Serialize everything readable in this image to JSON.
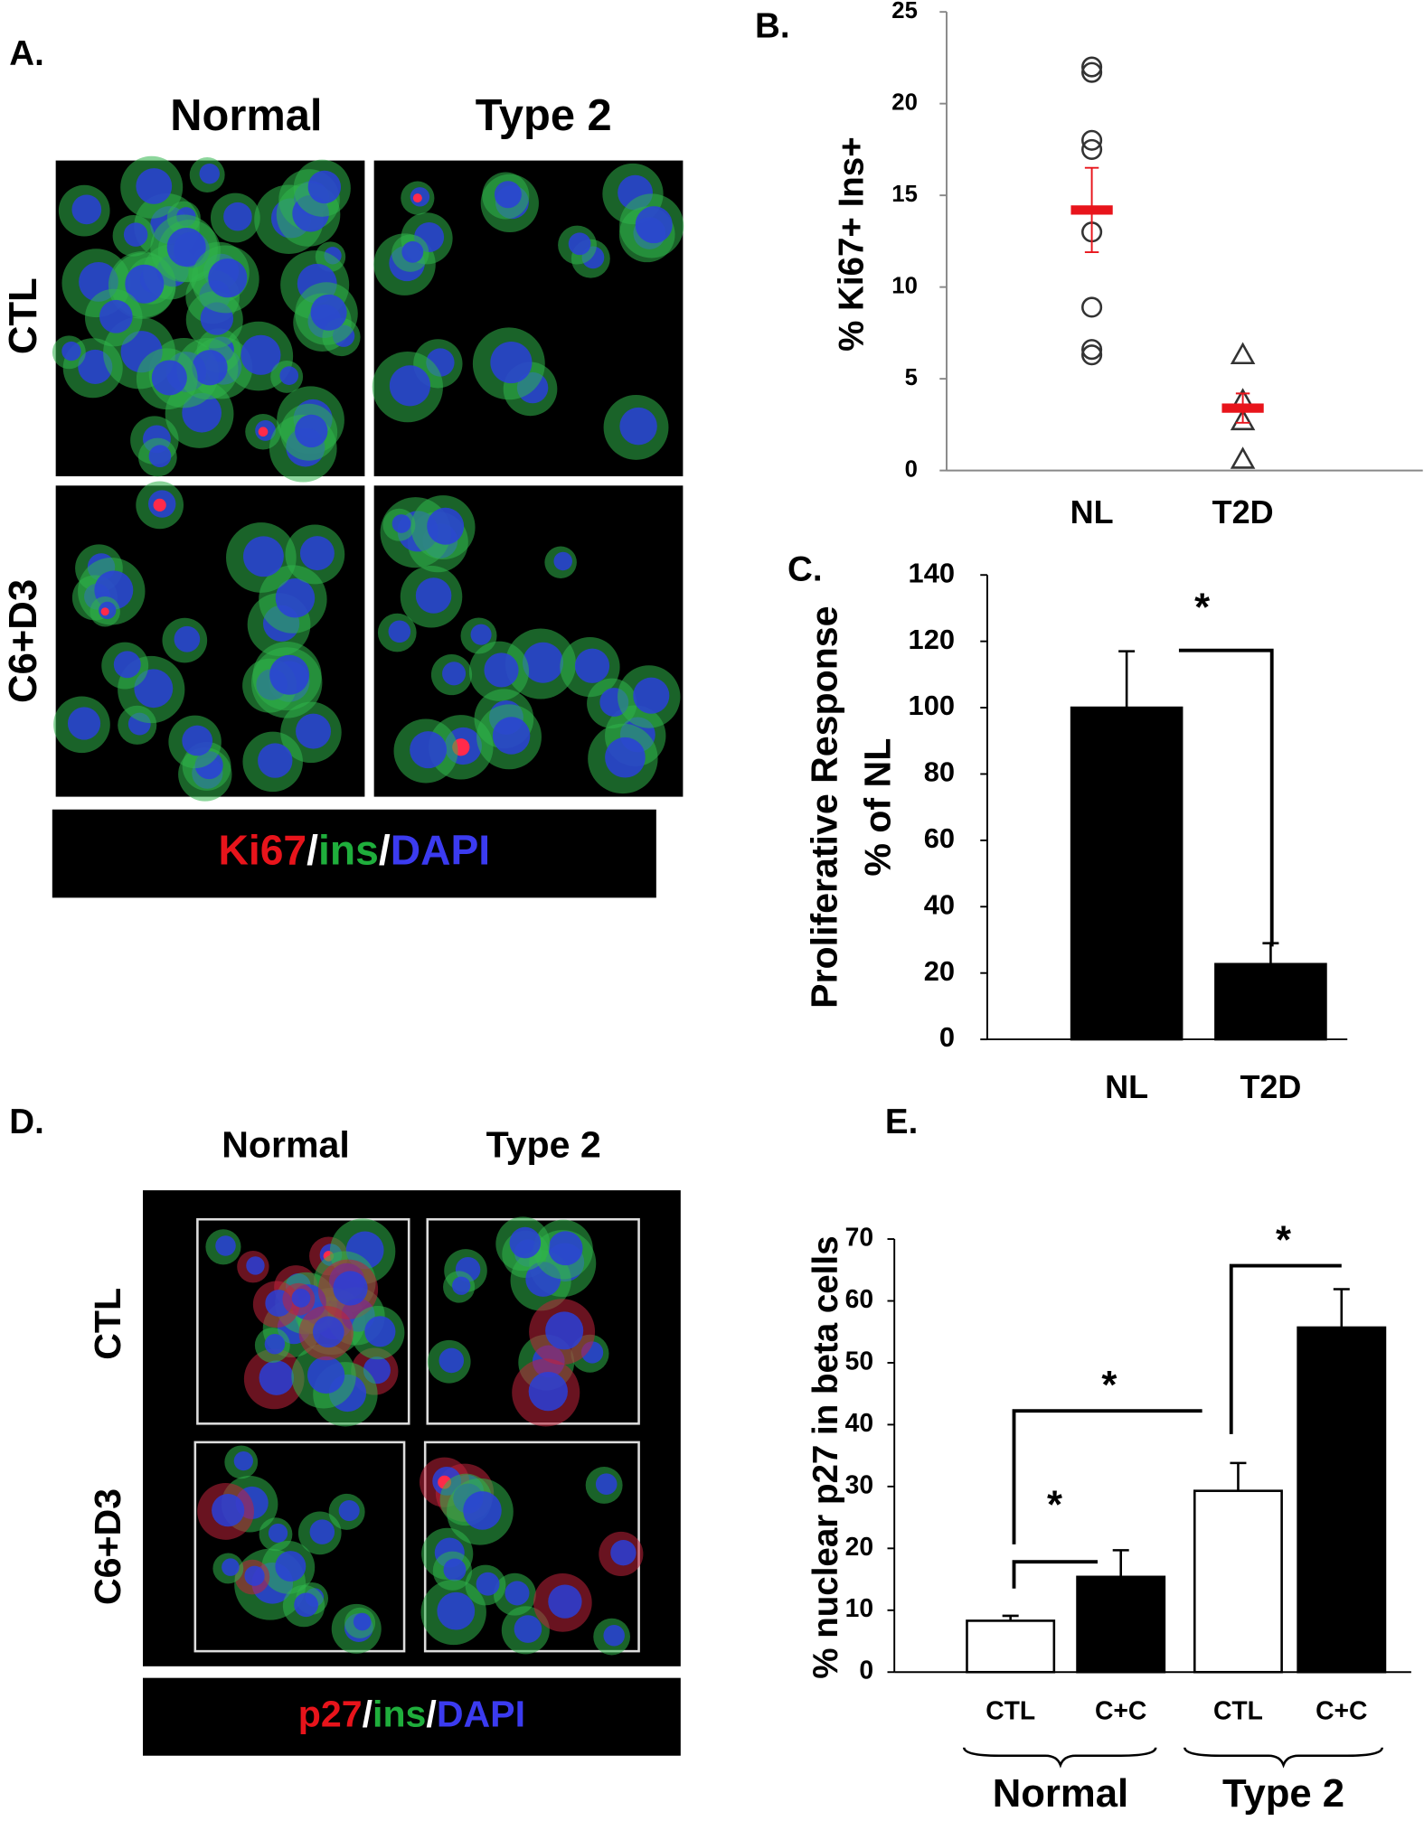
{
  "panel_a": {
    "label": "A.",
    "columns": [
      "Normal",
      "Type 2"
    ],
    "rows": [
      "CTL",
      "C6+D3"
    ],
    "legend": [
      {
        "text": "Ki67",
        "color": "#e8141b"
      },
      {
        "text": "/",
        "color": "#ffffff"
      },
      {
        "text": "ins",
        "color": "#1fae3c"
      },
      {
        "text": "/",
        "color": "#ffffff"
      },
      {
        "text": "DAPI",
        "color": "#3b3bf0"
      }
    ]
  },
  "panel_d": {
    "label": "D.",
    "columns": [
      "Normal",
      "Type 2"
    ],
    "rows": [
      "CTL",
      "C6+D3"
    ],
    "legend": [
      {
        "text": "p27",
        "color": "#e8141b"
      },
      {
        "text": "/",
        "color": "#ffffff"
      },
      {
        "text": "ins",
        "color": "#1fae3c"
      },
      {
        "text": "/",
        "color": "#ffffff"
      },
      {
        "text": "DAPI",
        "color": "#3b3bf0"
      }
    ]
  },
  "chart_data": [
    {
      "type": "scatter",
      "panel_label": "B.",
      "y_label": "% Ki67+ Ins+",
      "categories": [
        "NL",
        "T2D"
      ],
      "points": [
        [
          22.0,
          21.7,
          18.0,
          17.5,
          13.0,
          8.9,
          6.6,
          6.3
        ],
        [
          6.3,
          3.8,
          2.7,
          0.6
        ]
      ],
      "markers": [
        "circle",
        "triangle"
      ],
      "means": [
        14.2,
        3.4
      ],
      "errors": [
        2.3,
        0.8
      ],
      "mean_color": "#e8141b",
      "ylim": [
        0,
        25
      ],
      "yticks": [
        0,
        5,
        10,
        15,
        20,
        25
      ]
    },
    {
      "type": "bar",
      "panel_label": "C.",
      "y_label": [
        "Proliferative Response",
        "% of NL"
      ],
      "categories": [
        "NL",
        "T2D"
      ],
      "values": [
        100,
        22.7
      ],
      "errors": [
        17,
        6.3
      ],
      "colors": [
        "#000000",
        "#000000"
      ],
      "ylim": [
        0,
        140
      ],
      "yticks": [
        0,
        20,
        40,
        60,
        80,
        100,
        120,
        140
      ],
      "annotations": [
        "*"
      ]
    },
    {
      "type": "bar",
      "panel_label": "E.",
      "y_label": "% nuclear p27 in beta cells",
      "categories": [
        "CTL",
        "C+C",
        "CTL",
        "C+C"
      ],
      "groups": [
        "Normal",
        "Type 2"
      ],
      "values": [
        8.3,
        15.4,
        29.3,
        55.7
      ],
      "errors": [
        0.8,
        4.3,
        4.5,
        6.2
      ],
      "colors": [
        "#ffffff",
        "#000000",
        "#ffffff",
        "#000000"
      ],
      "ylim": [
        0,
        70
      ],
      "yticks": [
        0,
        10,
        20,
        30,
        40,
        50,
        60,
        70
      ],
      "annotations": [
        "*",
        "*",
        "*"
      ]
    }
  ]
}
